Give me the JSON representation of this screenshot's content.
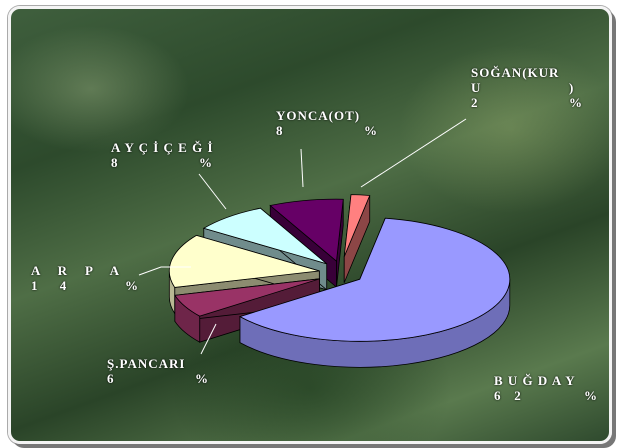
{
  "chart_data": {
    "type": "pie",
    "style": "3d-exploded",
    "slices": [
      {
        "label_line1": "B U Ğ D A Y",
        "label_line2": "6   2",
        "value": 62,
        "color": "#9999ff"
      },
      {
        "label_line1": "Ş.PANCARI",
        "label_line2": "6",
        "value": 6,
        "color": "#993366"
      },
      {
        "label_line1": "A    R    P    A",
        "label_line2": "1     4",
        "value": 14,
        "color": "#ffffcc"
      },
      {
        "label_line1": "A Y Ç İ Ç E Ğ İ",
        "label_line2": "8",
        "value": 8,
        "color": "#ccffff"
      },
      {
        "label_line1": "YONCA(OT)",
        "label_line2": "8",
        "value": 8,
        "color": "#660066"
      },
      {
        "label_line1": "SOĞAN(KUR",
        "label_line2": "U",
        "label_line3": ")",
        "label_line4": "2",
        "value": 2,
        "color": "#ff8080"
      }
    ],
    "pct_symbol": "%",
    "legend": "none",
    "grid": false
  }
}
